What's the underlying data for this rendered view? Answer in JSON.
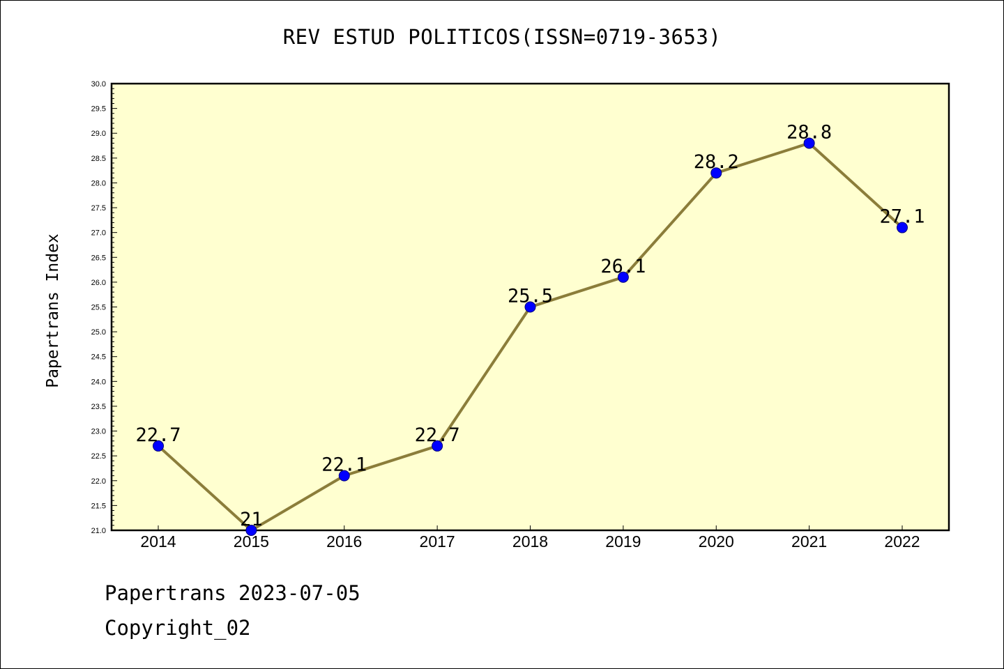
{
  "chart_data": {
    "type": "line",
    "title": "REV ESTUD POLITICOS(ISSN=0719-3653)",
    "ylabel": "Papertrans Index",
    "xlabel": "",
    "categories": [
      "2014",
      "2015",
      "2016",
      "2017",
      "2018",
      "2019",
      "2020",
      "2021",
      "2022"
    ],
    "series": [
      {
        "values": [
          22.7,
          21.0,
          22.1,
          22.7,
          25.5,
          26.1,
          28.2,
          28.8,
          27.1
        ]
      }
    ],
    "data_labels": [
      "22.7",
      "21",
      "22.1",
      "22.7",
      "25.5",
      "26.1",
      "28.2",
      "28.8",
      "27.1"
    ],
    "ylim": [
      21.0,
      30.0
    ],
    "yticks": [
      "21.0",
      "21.5",
      "22.0",
      "22.5",
      "23.0",
      "23.5",
      "24.0",
      "24.5",
      "25.0",
      "25.5",
      "26.0",
      "26.5",
      "27.0",
      "27.5",
      "28.0",
      "28.5",
      "29.0",
      "29.5",
      "30.0"
    ],
    "grid": false,
    "colors": {
      "plot_bg": "#ffffd0",
      "line": "#8b7d3a",
      "marker": "#0000ff"
    }
  },
  "footer": {
    "date_line": "Papertrans 2023-07-05",
    "copyright": "Copyright_02"
  }
}
